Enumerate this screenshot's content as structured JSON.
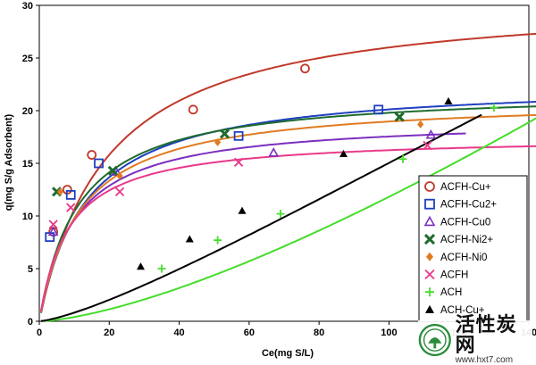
{
  "chart_data": {
    "type": "scatter",
    "title": "",
    "xlabel": "Ce(mg S/L)",
    "ylabel": "q(mg S/g Adsorbent)",
    "xlim": [
      0,
      140
    ],
    "ylim": [
      0,
      30
    ],
    "xticks": [
      0,
      20,
      40,
      60,
      80,
      100,
      120,
      140
    ],
    "yticks": [
      0,
      5,
      10,
      15,
      20,
      25,
      30
    ],
    "x_tick_labels": [
      "0",
      "20",
      "40",
      "60",
      "80",
      "100",
      "120",
      "140"
    ],
    "y_tick_labels": [
      "0",
      "5",
      "10",
      "15",
      "20",
      "25",
      "30"
    ],
    "grid": false,
    "legend_position": "right",
    "series": [
      {
        "name": "ACFH-Cu+",
        "marker": "circle-open",
        "color": "#c0392b",
        "points": [
          [
            4,
            8.5
          ],
          [
            8,
            12.5
          ],
          [
            15,
            15.8
          ],
          [
            44,
            20.1
          ],
          [
            76,
            24.0
          ]
        ],
        "fit": {
          "type": "langmuir",
          "qmax": 31,
          "K": 0.052
        }
      },
      {
        "name": "ACFH-Cu2+",
        "marker": "square-open",
        "color": "#1f3fbf",
        "points": [
          [
            3,
            8.0
          ],
          [
            9,
            12.0
          ],
          [
            17,
            15.0
          ],
          [
            57,
            17.6
          ],
          [
            97,
            20.1
          ]
        ],
        "fit": {
          "type": "langmuir",
          "qmax": 22.8,
          "K": 0.075
        }
      },
      {
        "name": "ACFH-Cu0",
        "marker": "triangle-open",
        "color": "#7b2fbf",
        "points": [
          [
            4,
            8.5
          ],
          [
            22,
            14.2
          ],
          [
            67,
            16.0
          ],
          [
            112,
            17.7
          ]
        ],
        "fit": {
          "type": "langmuir",
          "qmax": 19.3,
          "K": 0.1
        }
      },
      {
        "name": "ACFH-Ni2+",
        "marker": "x-thick",
        "color": "#1e6b2e",
        "points": [
          [
            5,
            12.3
          ],
          [
            21,
            14.3
          ],
          [
            53,
            17.8
          ],
          [
            103,
            19.4
          ]
        ],
        "fit": {
          "type": "langmuir",
          "qmax": 22.0,
          "K": 0.09
        }
      },
      {
        "name": "ACFH-Ni0",
        "marker": "diamond",
        "color": "#e07b22",
        "points": [
          [
            6,
            12.3
          ],
          [
            23,
            13.8
          ],
          [
            51,
            17.0
          ],
          [
            109,
            18.7
          ]
        ],
        "fit": {
          "type": "langmuir",
          "qmax": 21.2,
          "K": 0.085
        }
      },
      {
        "name": "ACFH",
        "marker": "x",
        "color": "#e8398a",
        "points": [
          [
            4,
            9.2
          ],
          [
            9,
            10.8
          ],
          [
            23,
            12.3
          ],
          [
            57,
            15.1
          ],
          [
            111,
            16.7
          ]
        ],
        "fit": {
          "type": "langmuir",
          "qmax": 17.6,
          "K": 0.12
        }
      },
      {
        "name": "ACH",
        "marker": "plus",
        "color": "#44dd2a",
        "points": [
          [
            35,
            5.0
          ],
          [
            51,
            7.7
          ],
          [
            69,
            10.2
          ],
          [
            104,
            15.4
          ],
          [
            130,
            20.3
          ]
        ],
        "fit": {
          "type": "power",
          "a": 0.013,
          "b": 1.5,
          "k": 0.001
        }
      },
      {
        "name": "ACH-Cu+",
        "marker": "triangle-filled",
        "color": "#000000",
        "points": [
          [
            29,
            5.2
          ],
          [
            43,
            7.8
          ],
          [
            58,
            10.5
          ],
          [
            87,
            15.9
          ],
          [
            117,
            20.9
          ]
        ],
        "fit": {
          "type": "power",
          "a": 0.0375,
          "b": 1.35,
          "k": 0.0025
        }
      }
    ]
  },
  "watermark": {
    "title": "活性炭网",
    "url": "www.hxt7.com"
  }
}
